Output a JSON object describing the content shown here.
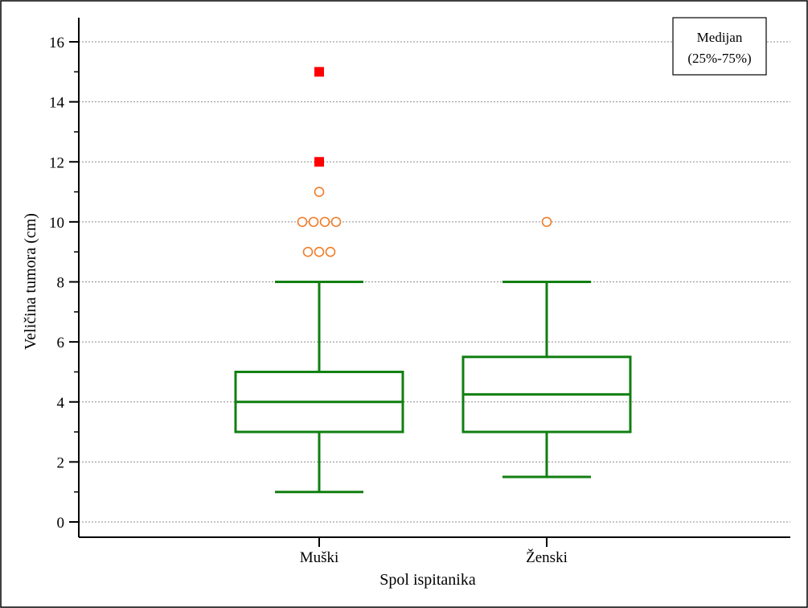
{
  "chart_data": {
    "type": "box",
    "xlabel": "Spol ispitanika",
    "ylabel": "Veličina tumora (cm)",
    "ylim": [
      0,
      16
    ],
    "yticks": [
      0,
      2,
      4,
      6,
      8,
      10,
      12,
      14,
      16
    ],
    "ytick_labels": [
      "0",
      "2",
      "4",
      "6",
      "8",
      "10",
      "12",
      "14",
      "16"
    ],
    "grid": true,
    "legend": {
      "position": "top-right",
      "lines": [
        "Medijan",
        "(25%-75%)"
      ]
    },
    "categories": [
      "Muški",
      "Ženski"
    ],
    "boxes": [
      {
        "label": "Muški",
        "whisker_low": 1,
        "q1": 3,
        "median": 4,
        "q3": 5,
        "whisker_high": 8,
        "outliers": [
          9,
          9,
          9,
          10,
          10,
          10,
          10,
          11
        ],
        "far_outliers": [
          12,
          15
        ]
      },
      {
        "label": "Ženski",
        "whisker_low": 1.5,
        "q1": 3,
        "median": 4.25,
        "q3": 5.5,
        "whisker_high": 8,
        "outliers": [
          10
        ],
        "far_outliers": []
      }
    ],
    "colors": {
      "box": "#107f10",
      "outlier": "#f07c28",
      "far_outlier": "#ff0000",
      "grid": "#8c8c8c"
    }
  }
}
